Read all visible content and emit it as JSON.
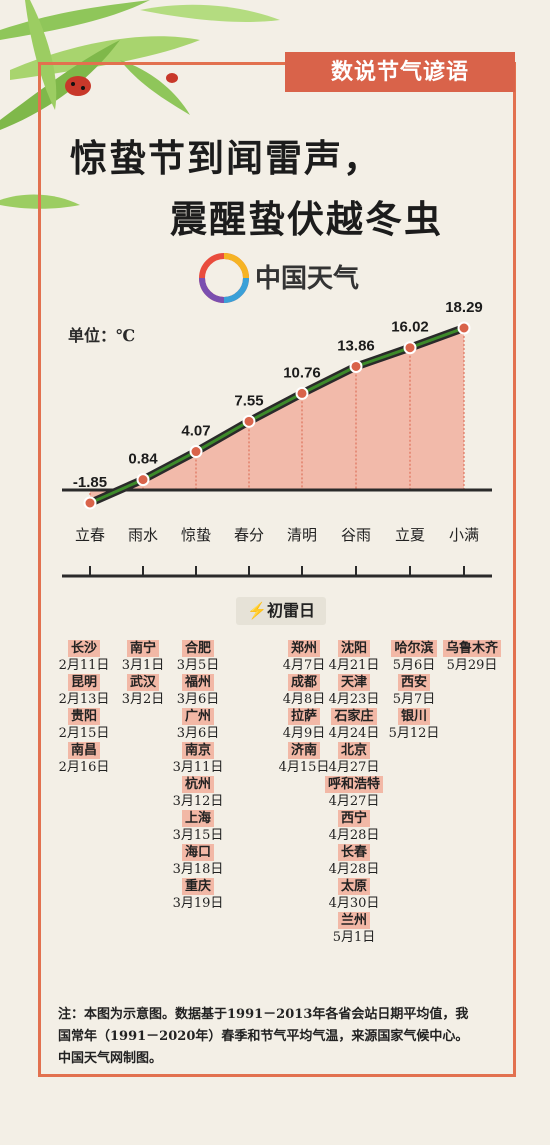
{
  "header": {
    "tag": "数说节气谚语",
    "title_line1": "惊蛰节到闻雷声，",
    "title_line2": "震醒蛰伏越冬虫",
    "brand": "中国天气"
  },
  "chart_data": {
    "type": "line",
    "unit_label": "单位：℃",
    "categories": [
      "立春",
      "雨水",
      "惊蛰",
      "春分",
      "清明",
      "谷雨",
      "立夏",
      "小满"
    ],
    "values": [
      -1.85,
      0.84,
      4.07,
      7.55,
      10.76,
      13.86,
      16.02,
      18.29
    ],
    "value_labels": [
      "-1.85",
      "0.84",
      "4.07",
      "7.55",
      "10.76",
      "13.86",
      "16.02",
      "18.29"
    ],
    "ylim": [
      -1.85,
      18.29
    ],
    "colors": {
      "line": "#3d8a2a",
      "fill": "#f2a895",
      "marker": "#d9634a"
    }
  },
  "first_thunder": {
    "badge": "初雷日",
    "columns": [
      [
        {
          "city": "长沙",
          "date": "2月11日"
        },
        {
          "city": "昆明",
          "date": "2月13日"
        },
        {
          "city": "贵阳",
          "date": "2月15日"
        },
        {
          "city": "南昌",
          "date": "2月16日"
        }
      ],
      [
        {
          "city": "南宁",
          "date": "3月1日"
        },
        {
          "city": "武汉",
          "date": "3月2日"
        }
      ],
      [
        {
          "city": "合肥",
          "date": "3月5日"
        },
        {
          "city": "福州",
          "date": "3月6日"
        },
        {
          "city": "广州",
          "date": "3月6日"
        },
        {
          "city": "南京",
          "date": "3月11日"
        },
        {
          "city": "杭州",
          "date": "3月12日"
        },
        {
          "city": "上海",
          "date": "3月15日"
        },
        {
          "city": "海口",
          "date": "3月18日"
        },
        {
          "city": "重庆",
          "date": "3月19日"
        }
      ],
      [
        {
          "city": "郑州",
          "date": "4月7日"
        },
        {
          "city": "成都",
          "date": "4月8日"
        },
        {
          "city": "拉萨",
          "date": "4月9日"
        },
        {
          "city": "济南",
          "date": "4月15日"
        }
      ],
      [
        {
          "city": "沈阳",
          "date": "4月21日"
        },
        {
          "city": "天津",
          "date": "4月23日"
        },
        {
          "city": "石家庄",
          "date": "4月24日"
        },
        {
          "city": "北京",
          "date": "4月27日"
        },
        {
          "city": "呼和浩特",
          "date": "4月27日"
        },
        {
          "city": "西宁",
          "date": "4月28日"
        },
        {
          "city": "长春",
          "date": "4月28日"
        },
        {
          "city": "太原",
          "date": "4月30日"
        },
        {
          "city": "兰州",
          "date": "5月1日"
        }
      ],
      [
        {
          "city": "哈尔滨",
          "date": "5月6日"
        },
        {
          "city": "西安",
          "date": "5月7日"
        },
        {
          "city": "银川",
          "date": "5月12日"
        }
      ],
      [
        {
          "city": "乌鲁木齐",
          "date": "5月29日"
        }
      ]
    ]
  },
  "footer": {
    "note": "注：本图为示意图。数据基于1991－2013年各省会站日期平均值，我国常年（1991－2020年）春季和节气平均气温，来源国家气候中心。中国天气网制图。"
  }
}
